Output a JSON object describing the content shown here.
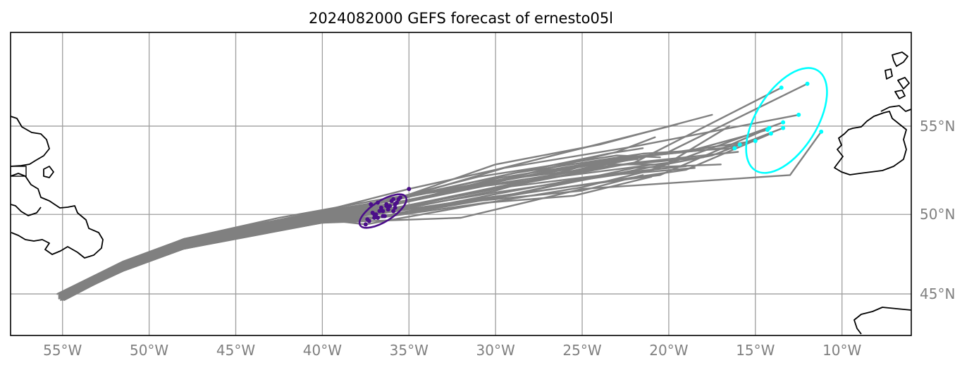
{
  "title": "2024082000 GEFS forecast of ernesto05l",
  "chart_data": {
    "type": "map-track-forecast",
    "title": "2024082000 GEFS forecast of ernesto05l",
    "lon_range": [
      -58.0,
      -6.0
    ],
    "lat_range": [
      42.2,
      59.7
    ],
    "lon_ticks": [
      -55,
      -50,
      -45,
      -40,
      -35,
      -30,
      -25,
      -20,
      -15,
      -10
    ],
    "lon_tick_labels": [
      "55°W",
      "50°W",
      "45°W",
      "40°W",
      "35°W",
      "30°W",
      "25°W",
      "20°W",
      "15°W",
      "10°W"
    ],
    "lat_ticks": [
      45,
      50,
      55
    ],
    "lat_tick_labels": [
      "45°N",
      "50°N",
      "55°N"
    ],
    "grid": true,
    "colors": {
      "track": "#808080",
      "mid_points": "#4b0e8a",
      "mid_ellipse": "#4b0e8a",
      "end_points": "#00ffff",
      "end_ellipse": "#00ffff",
      "coast": "#000000",
      "grid": "#9e9e9e"
    },
    "tracks": [
      [
        [
          -55.3,
          45.0
        ],
        [
          -51.5,
          47.1
        ],
        [
          -48.0,
          48.5
        ],
        [
          -40.0,
          50.2
        ],
        [
          -35.0,
          51.5
        ],
        [
          -30.0,
          52.6
        ],
        [
          -25.0,
          53.8
        ],
        [
          -19.5,
          55.1
        ]
      ],
      [
        [
          -55.1,
          44.9
        ],
        [
          -51.5,
          46.9
        ],
        [
          -48.0,
          48.4
        ],
        [
          -40.0,
          50.1
        ],
        [
          -35.5,
          51.0
        ],
        [
          -30.0,
          52.9
        ],
        [
          -24.0,
          54.0
        ],
        [
          -17.5,
          55.6
        ]
      ],
      [
        [
          -55.0,
          44.8
        ],
        [
          -51.5,
          46.8
        ],
        [
          -48.0,
          48.2
        ],
        [
          -40.0,
          49.9
        ],
        [
          -35.8,
          50.6
        ],
        [
          -30.0,
          51.8
        ],
        [
          -22.0,
          53.0
        ],
        [
          -13.5,
          57.0
        ]
      ],
      [
        [
          -54.9,
          44.7
        ],
        [
          -51.5,
          46.6
        ],
        [
          -48.0,
          48.1
        ],
        [
          -40.0,
          49.8
        ],
        [
          -36.2,
          50.3
        ],
        [
          -30.0,
          51.6
        ],
        [
          -20.0,
          53.6
        ],
        [
          -12.0,
          57.2
        ]
      ],
      [
        [
          -55.0,
          44.9
        ],
        [
          -51.5,
          46.9
        ],
        [
          -48.0,
          48.3
        ],
        [
          -40.0,
          50.0
        ],
        [
          -36.0,
          50.8
        ],
        [
          -29.5,
          52.7
        ],
        [
          -22.0,
          53.9
        ],
        [
          -12.5,
          55.6
        ]
      ],
      [
        [
          -55.2,
          44.8
        ],
        [
          -51.5,
          46.7
        ],
        [
          -48.0,
          48.0
        ],
        [
          -40.0,
          49.7
        ],
        [
          -36.5,
          50.2
        ],
        [
          -30.0,
          51.3
        ],
        [
          -21.0,
          52.6
        ],
        [
          -13.4,
          55.2
        ]
      ],
      [
        [
          -55.1,
          44.7
        ],
        [
          -51.5,
          46.5
        ],
        [
          -48.0,
          47.9
        ],
        [
          -40.0,
          49.6
        ],
        [
          -37.0,
          50.0
        ],
        [
          -30.5,
          51.0
        ],
        [
          -20.5,
          52.3
        ],
        [
          -14.2,
          54.9
        ]
      ],
      [
        [
          -54.8,
          44.8
        ],
        [
          -51.5,
          46.8
        ],
        [
          -48.0,
          48.2
        ],
        [
          -40.0,
          49.9
        ],
        [
          -36.8,
          49.8
        ],
        [
          -28.0,
          51.3
        ],
        [
          -19.0,
          52.6
        ],
        [
          -14.1,
          54.6
        ]
      ],
      [
        [
          -55.0,
          44.6
        ],
        [
          -51.5,
          46.6
        ],
        [
          -48.0,
          48.0
        ],
        [
          -40.0,
          49.5
        ],
        [
          -37.3,
          49.6
        ],
        [
          -32.0,
          49.8
        ],
        [
          -25.0,
          51.5
        ],
        [
          -13.0,
          52.3
        ],
        [
          -11.2,
          54.7
        ]
      ],
      [
        [
          -55.2,
          44.9
        ],
        [
          -51.5,
          46.9
        ],
        [
          -48.0,
          48.4
        ],
        [
          -40.0,
          50.1
        ],
        [
          -36.3,
          50.6
        ],
        [
          -29.5,
          52.0
        ],
        [
          -22.5,
          53.2
        ],
        [
          -15.0,
          54.2
        ]
      ],
      [
        [
          -54.9,
          44.9
        ],
        [
          -51.5,
          47.0
        ],
        [
          -48.0,
          48.5
        ],
        [
          -40.0,
          50.2
        ],
        [
          -35.6,
          50.9
        ],
        [
          -29.0,
          52.4
        ],
        [
          -21.5,
          53.5
        ],
        [
          -16.2,
          53.8
        ]
      ],
      [
        [
          -55.1,
          45.0
        ],
        [
          -51.5,
          47.0
        ],
        [
          -48.0,
          48.4
        ],
        [
          -40.0,
          50.0
        ],
        [
          -36.1,
          50.5
        ],
        [
          -30.0,
          52.1
        ],
        [
          -23.0,
          53.2
        ],
        [
          -17.0,
          53.8
        ],
        [
          -15.9,
          54.0
        ]
      ],
      [
        [
          -55.0,
          44.8
        ],
        [
          -51.5,
          46.7
        ],
        [
          -48.0,
          48.1
        ],
        [
          -40.0,
          49.8
        ],
        [
          -37.1,
          50.1
        ],
        [
          -30.0,
          51.5
        ],
        [
          -23.5,
          52.8
        ],
        [
          -18.0,
          53.3
        ]
      ],
      [
        [
          -55.2,
          44.7
        ],
        [
          -51.5,
          46.6
        ],
        [
          -48.0,
          48.0
        ],
        [
          -40.0,
          49.6
        ],
        [
          -36.4,
          49.9
        ],
        [
          -29.0,
          51.2
        ],
        [
          -22.0,
          52.7
        ],
        [
          -17.0,
          52.9
        ]
      ],
      [
        [
          -54.9,
          44.8
        ],
        [
          -51.5,
          46.8
        ],
        [
          -48.0,
          48.2
        ],
        [
          -40.0,
          49.8
        ],
        [
          -35.9,
          50.2
        ],
        [
          -30.0,
          51.0
        ],
        [
          -25.0,
          52.0
        ],
        [
          -17.5,
          53.4
        ],
        [
          -13.4,
          54.9
        ]
      ],
      [
        [
          -55.1,
          44.9
        ],
        [
          -51.5,
          46.9
        ],
        [
          -48.0,
          48.3
        ],
        [
          -40.0,
          49.9
        ],
        [
          -36.6,
          50.4
        ],
        [
          -30.0,
          51.9
        ],
        [
          -24.0,
          53.1
        ],
        [
          -19.0,
          53.6
        ],
        [
          -14.3,
          54.8
        ]
      ],
      [
        [
          -55.0,
          45.0
        ],
        [
          -51.5,
          47.0
        ],
        [
          -48.0,
          48.5
        ],
        [
          -40.0,
          50.1
        ],
        [
          -37.2,
          50.6
        ],
        [
          -31.0,
          52.2
        ],
        [
          -23.0,
          53.4
        ],
        [
          -20.5,
          53.3
        ]
      ],
      [
        [
          -55.2,
          44.9
        ],
        [
          -51.5,
          46.8
        ],
        [
          -48.0,
          48.3
        ],
        [
          -40.0,
          50.0
        ],
        [
          -35.7,
          50.7
        ],
        [
          -28.5,
          52.3
        ],
        [
          -23.0,
          53.6
        ],
        [
          -20.8,
          54.4
        ]
      ],
      [
        [
          -55.0,
          44.7
        ],
        [
          -51.5,
          46.7
        ],
        [
          -48.0,
          48.1
        ],
        [
          -40.0,
          49.7
        ],
        [
          -36.9,
          50.0
        ],
        [
          -30.0,
          51.4
        ],
        [
          -25.0,
          52.8
        ],
        [
          -21.8,
          53.2
        ]
      ],
      [
        [
          -55.1,
          44.8
        ],
        [
          -51.5,
          46.8
        ],
        [
          -48.0,
          48.2
        ],
        [
          -40.0,
          49.9
        ],
        [
          -36.2,
          50.3
        ],
        [
          -29.0,
          51.7
        ],
        [
          -24.0,
          52.9
        ],
        [
          -20.0,
          52.9
        ]
      ],
      [
        [
          -54.9,
          44.7
        ],
        [
          -51.5,
          46.6
        ],
        [
          -48.0,
          48.0
        ],
        [
          -40.0,
          49.7
        ],
        [
          -37.5,
          49.4
        ],
        [
          -31.0,
          50.6
        ],
        [
          -25.0,
          51.6
        ],
        [
          -20.5,
          52.7
        ]
      ],
      [
        [
          -55.1,
          44.6
        ],
        [
          -51.5,
          46.5
        ],
        [
          -48.0,
          47.9
        ],
        [
          -40.0,
          49.5
        ],
        [
          -37.4,
          49.7
        ],
        [
          -30.5,
          50.7
        ],
        [
          -25.5,
          51.1
        ],
        [
          -21.0,
          52.2
        ]
      ],
      [
        [
          -55.0,
          45.0
        ],
        [
          -51.5,
          47.0
        ],
        [
          -48.0,
          48.5
        ],
        [
          -42.5,
          49.8
        ],
        [
          -36.0,
          51.0
        ],
        [
          -28.0,
          52.0
        ],
        [
          -20.0,
          53.0
        ],
        [
          -16.5,
          55.0
        ]
      ],
      [
        [
          -55.2,
          44.8
        ],
        [
          -51.5,
          46.7
        ],
        [
          -48.0,
          48.1
        ],
        [
          -40.0,
          49.8
        ],
        [
          -36.7,
          50.2
        ],
        [
          -29.5,
          51.6
        ],
        [
          -23.0,
          52.4
        ],
        [
          -19.0,
          52.8
        ]
      ],
      [
        [
          -54.9,
          44.9
        ],
        [
          -51.5,
          46.9
        ],
        [
          -48.0,
          48.3
        ],
        [
          -40.0,
          50.0
        ],
        [
          -35.8,
          50.4
        ],
        [
          -28.0,
          51.9
        ],
        [
          -22.0,
          53.0
        ],
        [
          -16.0,
          53.6
        ]
      ],
      [
        [
          -55.1,
          44.7
        ],
        [
          -51.5,
          46.7
        ],
        [
          -48.0,
          48.0
        ],
        [
          -40.0,
          49.6
        ],
        [
          -36.5,
          49.9
        ],
        [
          -30.0,
          51.2
        ],
        [
          -24.5,
          52.2
        ],
        [
          -18.5,
          52.7
        ]
      ],
      [
        [
          -55.0,
          44.8
        ],
        [
          -51.5,
          46.8
        ],
        [
          -48.0,
          48.2
        ],
        [
          -40.0,
          49.8
        ],
        [
          -36.3,
          50.5
        ],
        [
          -29.0,
          52.1
        ],
        [
          -22.5,
          53.3
        ],
        [
          -18.0,
          53.7
        ]
      ],
      [
        [
          -55.2,
          45.0
        ],
        [
          -51.5,
          47.0
        ],
        [
          -48.0,
          48.4
        ],
        [
          -40.0,
          50.1
        ],
        [
          -35.9,
          50.9
        ],
        [
          -28.5,
          52.5
        ],
        [
          -23.5,
          53.5
        ],
        [
          -21.5,
          53.8
        ]
      ],
      [
        [
          -55.0,
          44.9
        ],
        [
          -51.5,
          46.9
        ],
        [
          -48.0,
          48.3
        ],
        [
          -40.0,
          49.9
        ],
        [
          -36.8,
          50.7
        ],
        [
          -30.0,
          52.0
        ],
        [
          -25.0,
          52.6
        ],
        [
          -22.8,
          52.9
        ]
      ],
      [
        [
          -54.9,
          44.6
        ],
        [
          -51.5,
          46.6
        ],
        [
          -48.0,
          47.9
        ],
        [
          -40.0,
          49.6
        ],
        [
          -37.0,
          49.8
        ],
        [
          -31.0,
          50.8
        ],
        [
          -25.0,
          51.4
        ],
        [
          -21.5,
          52.3
        ]
      ]
    ],
    "mid_points": [
      [
        -35.0,
        51.5
      ],
      [
        -35.5,
        51.0
      ],
      [
        -35.8,
        50.6
      ],
      [
        -36.2,
        50.3
      ],
      [
        -36.0,
        50.8
      ],
      [
        -36.5,
        50.2
      ],
      [
        -37.0,
        50.0
      ],
      [
        -36.8,
        49.8
      ],
      [
        -37.3,
        49.6
      ],
      [
        -36.3,
        50.6
      ],
      [
        -35.6,
        50.9
      ],
      [
        -36.1,
        50.5
      ],
      [
        -37.1,
        50.1
      ],
      [
        -36.4,
        49.9
      ],
      [
        -35.9,
        50.2
      ],
      [
        -36.6,
        50.4
      ],
      [
        -37.2,
        50.6
      ],
      [
        -35.7,
        50.7
      ],
      [
        -36.9,
        50.0
      ],
      [
        -36.2,
        50.3
      ],
      [
        -37.5,
        49.4
      ],
      [
        -37.4,
        49.7
      ],
      [
        -36.7,
        50.2
      ],
      [
        -35.8,
        50.4
      ],
      [
        -36.5,
        49.9
      ],
      [
        -36.3,
        50.5
      ],
      [
        -35.9,
        50.9
      ],
      [
        -36.8,
        50.7
      ],
      [
        -37.0,
        49.8
      ]
    ],
    "mid_ellipse": {
      "center": [
        -36.5,
        50.2
      ],
      "semi_axes_deg": [
        1.55,
        0.6
      ],
      "angle_deg": 32
    },
    "end_points": [
      [
        -13.5,
        57.0
      ],
      [
        -12.0,
        57.2
      ],
      [
        -12.5,
        55.6
      ],
      [
        -13.4,
        55.2
      ],
      [
        -14.2,
        54.9
      ],
      [
        -14.1,
        54.6
      ],
      [
        -11.2,
        54.7
      ],
      [
        -15.0,
        54.2
      ],
      [
        -16.2,
        53.8
      ],
      [
        -15.9,
        54.0
      ],
      [
        -13.4,
        54.9
      ],
      [
        -14.3,
        54.8
      ]
    ],
    "end_ellipse": {
      "center": [
        -13.2,
        55.3
      ],
      "semi_axes_deg": [
        3.4,
        1.75
      ],
      "angle_deg": 58
    }
  }
}
